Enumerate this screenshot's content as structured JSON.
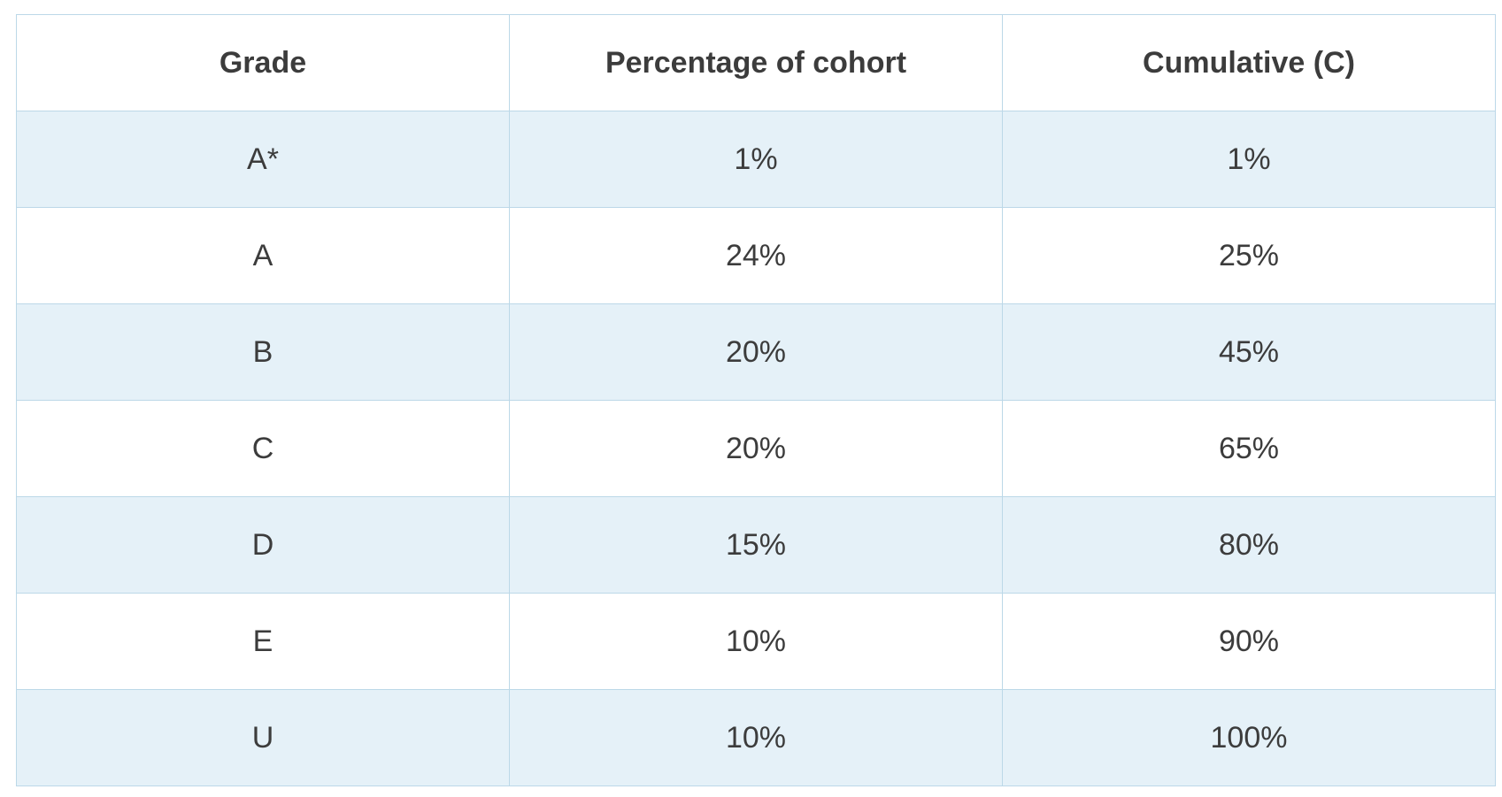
{
  "table": {
    "headers": [
      "Grade",
      "Percentage of cohort",
      "Cumulative (C)"
    ],
    "rows": [
      [
        "A*",
        "1%",
        "1%"
      ],
      [
        "A",
        "24%",
        "25%"
      ],
      [
        "B",
        "20%",
        "45%"
      ],
      [
        "C",
        "20%",
        "65%"
      ],
      [
        "D",
        "15%",
        "80%"
      ],
      [
        "E",
        "10%",
        "90%"
      ],
      [
        "U",
        "10%",
        "100%"
      ]
    ]
  },
  "colors": {
    "border": "#bcd8e8",
    "shaded_row": "#e5f1f8",
    "text": "#3c3c3c"
  }
}
